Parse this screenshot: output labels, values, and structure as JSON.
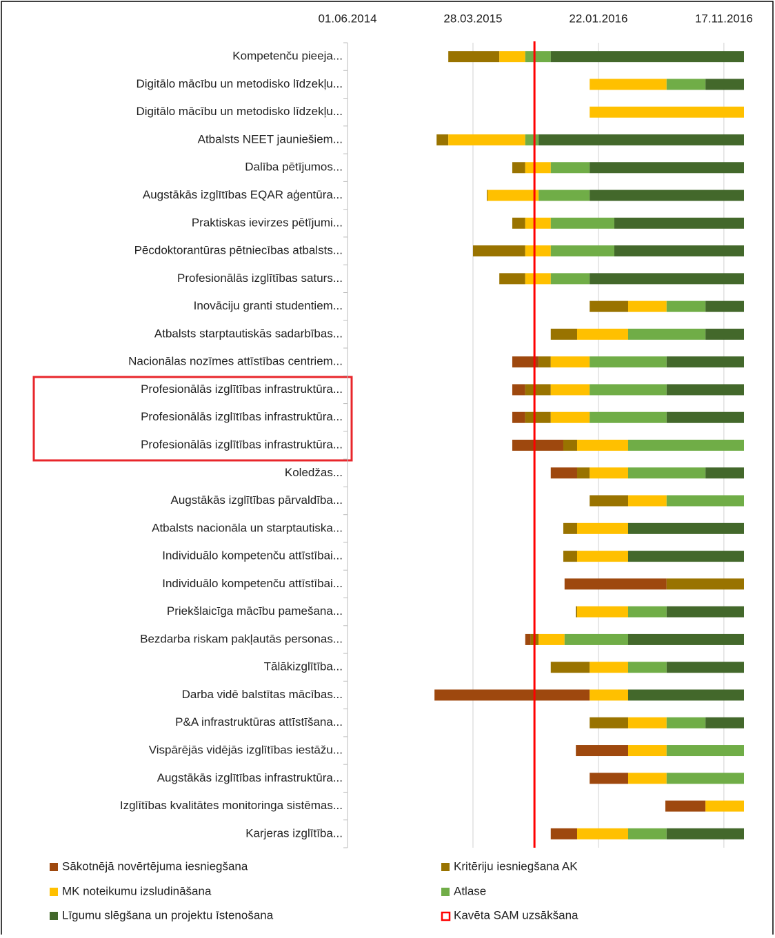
{
  "chart_data": {
    "type": "gantt",
    "categories": [
      "Kompetenču pieeja...",
      "Digitālo mācību un metodisko līdzekļu...",
      "Digitālo mācību un metodisko līdzekļu...",
      "Atbalsts NEET jauniešiem...",
      "Dalība pētījumos...",
      "Augstākās izglītības EQAR aģentūra...",
      "Praktiskas ievirzes pētījumi...",
      "Pēcdoktorantūras pētniecības atbalsts...",
      "Profesionālās izglītības saturs...",
      "Inovāciju granti studentiem...",
      "Atbalsts starptautiskās sadarbības...",
      "Nacionālas nozīmes attīstības centriem...",
      "Profesionālās izglītības infrastruktūra...",
      "Profesionālās izglītības infrastruktūra...",
      "Profesionālās izglītības infrastruktūra...",
      "Koledžas...",
      "Augstākās izglītības pārvaldība...",
      "Atbalsts nacionāla un starptautiska...",
      "Individuālo kompetenču attīstībai...",
      "Individuālo kompetenču attīstībai...",
      "Priekšlaicīga mācību pamešana...",
      "Bezdarba riskam pakļautās personas...",
      "Tālākizglītība...",
      "Darba vidē balstītas mācības...",
      "P&A infrastruktūras attīstīšana...",
      "Vispārējās vidējās izglītības iestāžu...",
      "Augstākās izglītības infrastruktūra...",
      "Izglītības kvalitātes monitoringa sistēmas...",
      "Karjeras izglītība..."
    ],
    "starts": [
      42032,
      42370,
      42370,
      42004,
      42185,
      42124,
      42185,
      42091,
      42154,
      42370,
      42277,
      42185,
      42185,
      42185,
      42185,
      42277,
      42370,
      42307,
      42307,
      42310,
      42337,
      42216,
      42277,
      41999,
      42370,
      42337,
      42370,
      42551,
      42277
    ],
    "series": [
      {
        "name": "Sākotnējā novērtējuma iesniegšana",
        "color": "#9e480e",
        "values": [
          0,
          0,
          0,
          0,
          0,
          0,
          0,
          0,
          0,
          0,
          0,
          63,
          31,
          31,
          122,
          63,
          0,
          0,
          0,
          244,
          0,
          13,
          0,
          371,
          0,
          125,
          92,
          96,
          63
        ]
      },
      {
        "name": "Kritēriju  iesniegšana AK",
        "color": "#997300",
        "values": [
          122,
          0,
          0,
          28,
          31,
          2,
          31,
          125,
          62,
          92,
          63,
          29,
          61,
          61,
          33,
          30,
          92,
          33,
          33,
          185,
          3,
          19,
          93,
          0,
          92,
          0,
          0,
          0,
          0
        ]
      },
      {
        "name": "MK noteikumu izsludināšana",
        "color": "#ffc000",
        "values": [
          62,
          184,
          369,
          184,
          61,
          122,
          61,
          61,
          61,
          92,
          122,
          93,
          93,
          93,
          122,
          92,
          92,
          122,
          122,
          0,
          122,
          62,
          92,
          92,
          92,
          92,
          92,
          92,
          122
        ]
      },
      {
        "name": "Atlase",
        "color": "#70ad47",
        "values": [
          61,
          93,
          0,
          32,
          93,
          122,
          152,
          152,
          93,
          93,
          185,
          184,
          184,
          184,
          277,
          185,
          185,
          0,
          0,
          0,
          92,
          152,
          92,
          0,
          93,
          185,
          185,
          0,
          92
        ]
      },
      {
        "name": "Līgumu slēgšana un projektu īstenošana",
        "color": "#43682b",
        "values": [
          462,
          92,
          0,
          491,
          369,
          369,
          310,
          310,
          369,
          92,
          92,
          185,
          185,
          185,
          0,
          92,
          0,
          277,
          277,
          0,
          185,
          277,
          185,
          277,
          92,
          0,
          0,
          0,
          185
        ]
      }
    ],
    "xlim": [
      41791,
      42739
    ],
    "xticks": [
      {
        "value": 41791,
        "label": "01.06.2014"
      },
      {
        "value": 42091,
        "label": "28.03.2015"
      },
      {
        "value": 42391,
        "label": "22.01.2016"
      },
      {
        "value": 42691,
        "label": "17.11.2016"
      }
    ],
    "reference_line": 42238,
    "reference_color": "#ff0000",
    "highlight_label": "Kavēta SAM uzsākšana",
    "grid": true
  }
}
